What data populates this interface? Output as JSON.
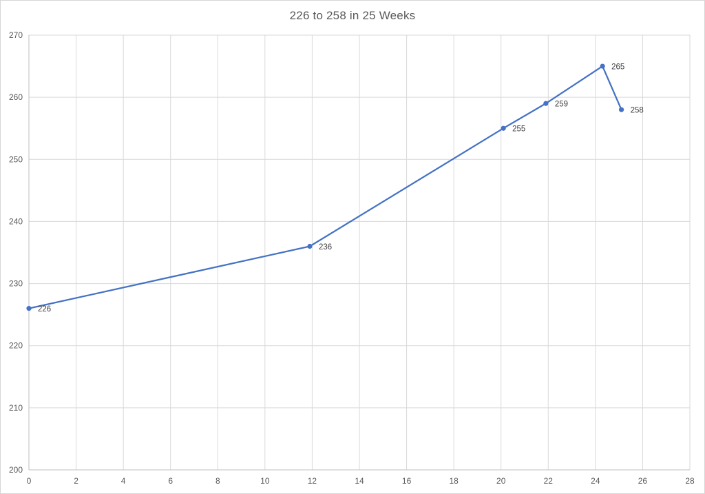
{
  "chart": {
    "title": "226 to 258 in 25 Weeks"
  },
  "chart_data": {
    "type": "line",
    "title": "226 to 258 in 25 Weeks",
    "xlabel": "",
    "ylabel": "",
    "xlim": [
      0,
      28
    ],
    "ylim": [
      200,
      270
    ],
    "x_ticks": [
      0,
      2,
      4,
      6,
      8,
      10,
      12,
      14,
      16,
      18,
      20,
      22,
      24,
      26,
      28
    ],
    "y_ticks": [
      200,
      210,
      220,
      230,
      240,
      250,
      260,
      270
    ],
    "grid": true,
    "legend": false,
    "series": [
      {
        "color": "#4472C4",
        "marker": "circle",
        "points": [
          {
            "x": 0,
            "y": 226,
            "label": "226"
          },
          {
            "x": 11.9,
            "y": 236,
            "label": "236"
          },
          {
            "x": 20.1,
            "y": 255,
            "label": "255"
          },
          {
            "x": 21.9,
            "y": 259,
            "label": "259"
          },
          {
            "x": 24.3,
            "y": 265,
            "label": "265"
          },
          {
            "x": 25.1,
            "y": 258,
            "label": "258"
          }
        ]
      }
    ]
  },
  "colors": {
    "line": "#4472C4",
    "gridline": "#d9d9d9",
    "axis_line": "#bfbfbf",
    "tick_text": "#595959",
    "label_text": "#404040",
    "title_text": "#595959",
    "background": "#ffffff",
    "frame_border": "#d6d6d6"
  }
}
